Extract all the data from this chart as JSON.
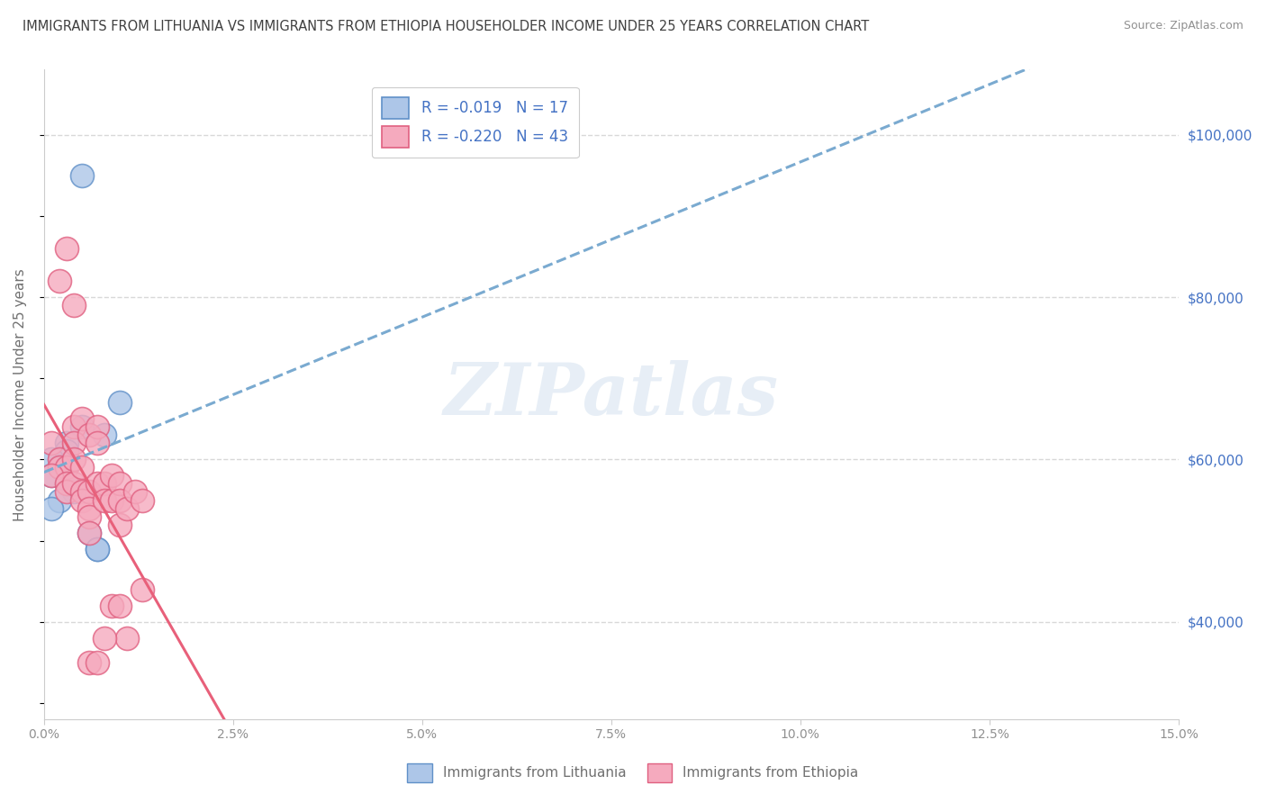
{
  "title": "IMMIGRANTS FROM LITHUANIA VS IMMIGRANTS FROM ETHIOPIA HOUSEHOLDER INCOME UNDER 25 YEARS CORRELATION CHART",
  "source": "Source: ZipAtlas.com",
  "ylabel": "Householder Income Under 25 years",
  "legend_label1": "Immigrants from Lithuania",
  "legend_label2": "Immigrants from Ethiopia",
  "legend_r1": "R = -0.019",
  "legend_n1": "N = 17",
  "legend_r2": "R = -0.220",
  "legend_n2": "N = 43",
  "watermark": "ZIPatlas",
  "right_yticks": [
    40000,
    60000,
    80000,
    100000
  ],
  "right_ytick_labels": [
    "$40,000",
    "$60,000",
    "$80,000",
    "$100,000"
  ],
  "color_lithuania": "#adc6e8",
  "color_ethiopia": "#f5aabe",
  "color_line_lithuania": "#6090c8",
  "color_line_ethiopia": "#e06080",
  "color_trendline_lithuania": "#7aaad0",
  "color_trendline_ethiopia": "#e8607a",
  "background_color": "#ffffff",
  "grid_color": "#d8d8d8",
  "title_color": "#404040",
  "source_color": "#909090",
  "legend_text_color": "#4472c4",
  "axis_label_color": "#707070",
  "scatter_lithuania": [
    [
      0.005,
      95000
    ],
    [
      0.01,
      67000
    ],
    [
      0.005,
      64000
    ],
    [
      0.008,
      63000
    ],
    [
      0.003,
      62000
    ],
    [
      0.003,
      61000
    ],
    [
      0.002,
      60000
    ],
    [
      0.001,
      60000
    ],
    [
      0.002,
      59000
    ],
    [
      0.001,
      58000
    ],
    [
      0.003,
      57000
    ],
    [
      0.004,
      56000
    ],
    [
      0.002,
      55000
    ],
    [
      0.001,
      54000
    ],
    [
      0.006,
      51000
    ],
    [
      0.007,
      49000
    ],
    [
      0.007,
      49000
    ]
  ],
  "scatter_ethiopia": [
    [
      0.001,
      62000
    ],
    [
      0.002,
      60000
    ],
    [
      0.002,
      59000
    ],
    [
      0.003,
      59000
    ],
    [
      0.001,
      58000
    ],
    [
      0.003,
      57000
    ],
    [
      0.003,
      56000
    ],
    [
      0.004,
      64000
    ],
    [
      0.004,
      62000
    ],
    [
      0.004,
      60000
    ],
    [
      0.004,
      57000
    ],
    [
      0.005,
      65000
    ],
    [
      0.005,
      59000
    ],
    [
      0.005,
      56000
    ],
    [
      0.005,
      55000
    ],
    [
      0.006,
      63000
    ],
    [
      0.006,
      56000
    ],
    [
      0.006,
      54000
    ],
    [
      0.006,
      53000
    ],
    [
      0.006,
      51000
    ],
    [
      0.007,
      64000
    ],
    [
      0.007,
      62000
    ],
    [
      0.007,
      57000
    ],
    [
      0.008,
      57000
    ],
    [
      0.008,
      55000
    ],
    [
      0.009,
      58000
    ],
    [
      0.009,
      55000
    ],
    [
      0.009,
      42000
    ],
    [
      0.01,
      57000
    ],
    [
      0.01,
      55000
    ],
    [
      0.01,
      52000
    ],
    [
      0.01,
      42000
    ],
    [
      0.011,
      54000
    ],
    [
      0.011,
      38000
    ],
    [
      0.012,
      56000
    ],
    [
      0.013,
      55000
    ],
    [
      0.013,
      44000
    ],
    [
      0.002,
      82000
    ],
    [
      0.003,
      86000
    ],
    [
      0.004,
      79000
    ],
    [
      0.006,
      35000
    ],
    [
      0.007,
      35000
    ],
    [
      0.008,
      38000
    ]
  ],
  "xmin": 0.0,
  "xmax": 0.15,
  "ymin": 28000,
  "ymax": 108000,
  "xticks": [
    0.0,
    0.025,
    0.05,
    0.075,
    0.1,
    0.125,
    0.15
  ],
  "xtick_labels": [
    "0.0%",
    "2.5%",
    "5.0%",
    "7.5%",
    "10.0%",
    "12.5%",
    "15.0%"
  ]
}
